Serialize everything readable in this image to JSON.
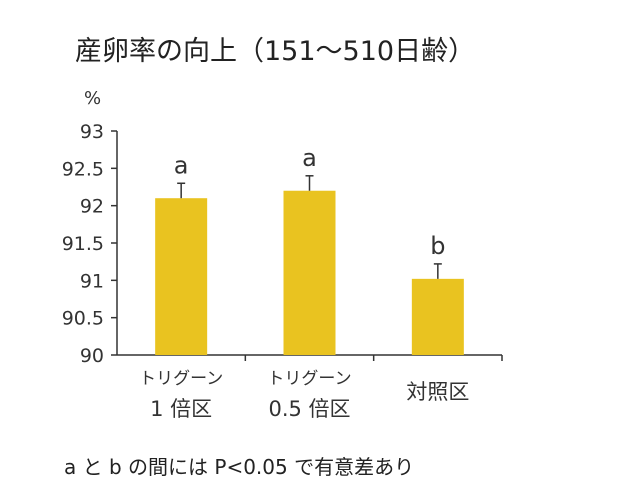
{
  "chart_data": {
    "type": "bar",
    "title": "産卵率の向上（151〜510日齢）",
    "ylabel": "%",
    "ylim": [
      90,
      93
    ],
    "yticks": [
      "90",
      "90.5",
      "91",
      "91.5",
      "92",
      "92.5",
      "93"
    ],
    "categories": [
      {
        "line1": "トリグーン",
        "line2": "1 倍区"
      },
      {
        "line1": "トリグーン",
        "line2": "0.5 倍区"
      },
      {
        "line1": "",
        "line2": "対照区"
      }
    ],
    "values": [
      92.1,
      92.2,
      91.02
    ],
    "error_upper": [
      92.3,
      92.4,
      91.22
    ],
    "significance": [
      "a",
      "a",
      "b"
    ],
    "bar_color": "#E9C320",
    "grid": false
  },
  "footnote": "a と b の間には P<0.05 で有意差あり"
}
